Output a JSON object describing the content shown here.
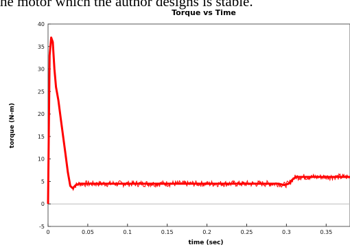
{
  "caption": "he motor which the author designs is stable.",
  "chart_data": {
    "type": "line",
    "title": "Torque vs Time",
    "xlabel": "time (sec)",
    "ylabel": "torque (N-m)",
    "xlim": [
      0,
      0.38
    ],
    "ylim": [
      -5,
      40
    ],
    "xticks": [
      0,
      0.05,
      0.1,
      0.15,
      0.2,
      0.25,
      0.3,
      0.35
    ],
    "xtick_labels": [
      "0",
      "0.05",
      "0.1",
      "0.15",
      "0.2",
      "0.25",
      "0.3",
      "0.35"
    ],
    "yticks": [
      -5,
      0,
      5,
      10,
      15,
      20,
      25,
      30,
      35,
      40
    ],
    "ytick_labels": [
      "-5",
      "0",
      "5",
      "10",
      "15",
      "20",
      "25",
      "30",
      "35",
      "40"
    ],
    "grid": false,
    "zero_line": 0,
    "series_color": "#ff0000",
    "series": [
      {
        "x": [
          0,
          0.002,
          0.004,
          0.006,
          0.008,
          0.01,
          0.013,
          0.016,
          0.019,
          0.022,
          0.025,
          0.028,
          0.031,
          0.035,
          0.04,
          0.05,
          0.1,
          0.15,
          0.2,
          0.25,
          0.29,
          0.297,
          0.303,
          0.308,
          0.312,
          0.32,
          0.35,
          0.38
        ],
        "y": [
          0,
          33,
          37,
          36,
          30,
          26,
          23,
          19,
          15,
          11,
          7,
          4,
          3.5,
          4.2,
          4.5,
          4.5,
          4.5,
          4.5,
          4.5,
          4.5,
          4.5,
          4.2,
          4.5,
          5.5,
          6.0,
          6.0,
          6.0,
          6.0
        ]
      }
    ]
  }
}
